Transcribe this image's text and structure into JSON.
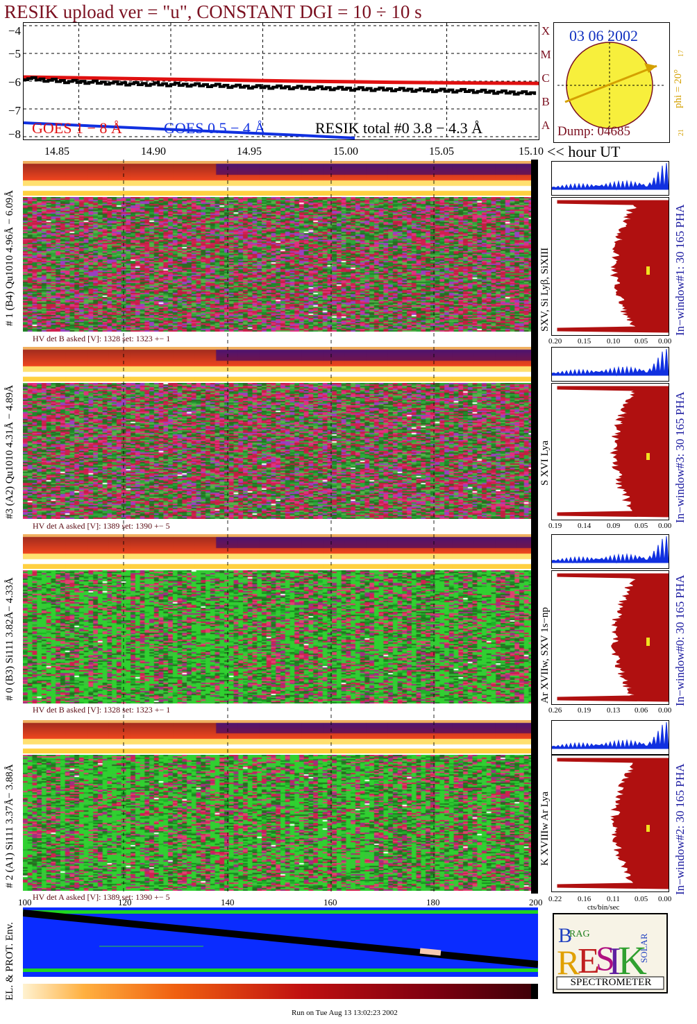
{
  "header": {
    "title": "RESIK upload ver = \"u\", CONSTANT  DGI =  10 ÷  10 s"
  },
  "goes": {
    "yticks": [
      "−4",
      "−5",
      "−6",
      "−7",
      "−8"
    ],
    "labels": {
      "goes1": "GOES 1 − 8 Å",
      "goes2": "GOES 0.5 − 4 Å",
      "resik_total": "RESIK total #0  3.8 − 4.3 Å"
    },
    "class_letters": [
      "A",
      "B",
      "C",
      "M",
      "X"
    ],
    "colors": {
      "goes1": "#e01010",
      "goes2": "#1030e0",
      "resik": "#000000",
      "title": "#7b1020"
    }
  },
  "sun": {
    "date": "03 06 2002",
    "dump": "Dump: 04685",
    "phi": "phi = 20°",
    "small_top": "17",
    "small_bottom": "21"
  },
  "time_axis": {
    "ticks": [
      "14.85",
      "14.90",
      "14.95",
      "15.00",
      "15.05",
      "15.10"
    ],
    "unit_label": "<< hour UT"
  },
  "channels": [
    {
      "id": "ch1",
      "label": "# 1 (B4) Qu1010 4.96Å − 6.09Å",
      "hv": "HV det B asked [V]:  1328 set:  1323  +−    1",
      "lines": "SXV, Si Lyβ, SiXIII",
      "window": "In−window#1:   30 165 PHA",
      "pha_ticks": [
        "0.20",
        "0.15",
        "0.10",
        "0.05",
        "0.00"
      ]
    },
    {
      "id": "ch3",
      "label": "#3 (A2) Qu1010  4.31Å − 4.89Å",
      "hv": "HV det A asked [V]:  1389 set:  1390  +−    5",
      "lines": "S XVI Lya",
      "window": "In−window#3:   30 165 PHA",
      "pha_ticks": [
        "0.19",
        "0.14",
        "0.09",
        "0.05",
        "0.00"
      ]
    },
    {
      "id": "ch0",
      "label": "# 0 (B3) Si111  3.82Å− 4.33Å",
      "hv": "HV det B asked [V]:  1328 set:  1323  +−    1",
      "lines": "Ar XVIIw, SXV 1s−np",
      "window": "In−window#0:   30 165 PHA",
      "pha_ticks": [
        "0.26",
        "0.19",
        "0.13",
        "0.06",
        "0.00"
      ]
    },
    {
      "id": "ch2",
      "label": "# 2 (A1) Si111  3.37Å− 3.88Å",
      "hv": "HV det A asked [V]:  1389 set:  1390  +−    5",
      "lines": "K XVIIIw  Ar Lya",
      "window": "In−window#2:   30 165 PHA",
      "pha_ticks": [
        "0.22",
        "0.16",
        "0.11",
        "0.05",
        "0.00"
      ]
    }
  ],
  "pha_unit": "cts/bin/sec",
  "bottom": {
    "ylabel": "EL. & PROT. Env.",
    "xticks": [
      "100",
      "120",
      "140",
      "160",
      "180",
      "200"
    ]
  },
  "logo": {
    "letters": "RESIK",
    "top_left": "BRAG",
    "right": "SOLAR",
    "caption": "SPECTROMETER"
  },
  "footer": {
    "run": "Run on Tue Aug 13 13:02:23 2002"
  },
  "chart_data": [
    {
      "type": "line",
      "title": "RESIK upload ver = \"u\", CONSTANT  DGI =  10 ÷  10 s",
      "xlabel": "<< hour UT",
      "xlim": [
        14.82,
        15.1
      ],
      "ylim": [
        -8.1,
        -3.9
      ],
      "grid": true,
      "series": [
        {
          "name": "GOES 1 − 8 Å",
          "x": [
            14.82,
            14.87,
            14.92,
            14.97,
            15.02,
            15.07,
            15.1
          ],
          "values": [
            -5.85,
            -5.9,
            -5.95,
            -6.0,
            -6.04,
            -6.07,
            -6.08
          ]
        },
        {
          "name": "GOES 0.5 − 4 Å",
          "x": [
            14.82,
            14.87,
            14.92,
            14.97,
            15.0
          ],
          "values": [
            -7.5,
            -7.65,
            -7.8,
            -7.95,
            -8.05
          ]
        },
        {
          "name": "RESIK total #0  3.8 − 4.3 Å",
          "x": [
            14.82,
            14.84,
            14.86,
            14.88,
            14.9,
            14.92,
            14.94,
            14.96,
            14.98,
            15.0,
            15.02,
            15.04,
            15.06,
            15.08,
            15.1
          ],
          "values": [
            -5.9,
            -6.0,
            -6.05,
            -6.1,
            -6.12,
            -6.15,
            -6.2,
            -6.22,
            -6.25,
            -6.28,
            -6.3,
            -6.33,
            -6.35,
            -6.4,
            -6.45
          ]
        }
      ]
    }
  ]
}
